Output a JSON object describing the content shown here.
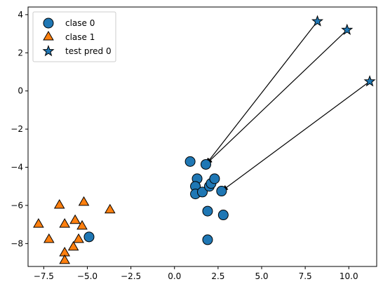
{
  "chart_data": {
    "type": "scatter",
    "title": "",
    "xlabel": "",
    "ylabel": "",
    "xlim": [
      -8.4,
      11.6
    ],
    "ylim": [
      -9.2,
      4.4
    ],
    "xticks": [
      -7.5,
      -5.0,
      -2.5,
      0.0,
      2.5,
      5.0,
      7.5,
      10.0
    ],
    "xtick_labels": [
      "−7.5",
      "−5.0",
      "−2.5",
      "0.0",
      "2.5",
      "5.0",
      "7.5",
      "10.0"
    ],
    "yticks": [
      4,
      2,
      0,
      -2,
      -4,
      -6,
      -8
    ],
    "ytick_labels": [
      "4",
      "2",
      "0",
      "−2",
      "−4",
      "−6",
      "−8"
    ],
    "grid": false,
    "legend_position": "top-left",
    "colors": {
      "blue": "#1f77b4",
      "orange": "#ff7f0e",
      "edge": "#000000"
    },
    "series": [
      {
        "name": "clase 0",
        "marker": "circle",
        "color": "#1f77b4",
        "x": [
          0.9,
          1.3,
          1.8,
          1.2,
          1.2,
          1.6,
          2.0,
          2.1,
          2.3,
          2.7,
          1.9,
          2.8,
          1.9,
          -4.9
        ],
        "y": [
          -3.7,
          -4.6,
          -3.85,
          -5.0,
          -5.4,
          -5.3,
          -5.0,
          -4.85,
          -4.6,
          -5.25,
          -6.3,
          -6.5,
          -7.8,
          -7.65
        ]
      },
      {
        "name": "clase 1",
        "marker": "triangle",
        "color": "#ff7f0e",
        "x": [
          -7.8,
          -7.2,
          -6.6,
          -6.3,
          -5.2,
          -3.7,
          -5.7,
          -5.3,
          -5.5,
          -5.8,
          -6.3,
          -6.3
        ],
        "y": [
          -7.0,
          -7.8,
          -6.0,
          -7.0,
          -5.85,
          -6.25,
          -6.8,
          -7.1,
          -7.8,
          -8.2,
          -8.5,
          -8.9
        ]
      },
      {
        "name": "test pred 0",
        "marker": "star",
        "color": "#1f77b4",
        "x": [
          8.2,
          9.9,
          11.2
        ],
        "y": [
          3.65,
          3.2,
          0.5
        ]
      }
    ],
    "arrows": [
      {
        "from": [
          8.2,
          3.65
        ],
        "to": [
          1.8,
          -3.85
        ]
      },
      {
        "from": [
          9.9,
          3.2
        ],
        "to": [
          1.8,
          -3.85
        ]
      },
      {
        "from": [
          11.2,
          0.5
        ],
        "to": [
          2.7,
          -5.25
        ]
      }
    ]
  }
}
